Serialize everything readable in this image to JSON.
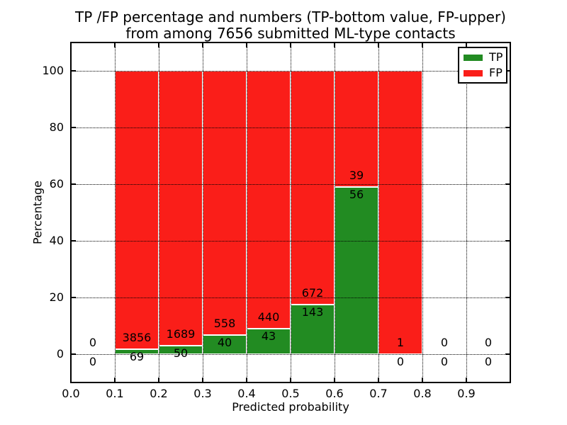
{
  "chart_data": {
    "type": "bar",
    "stacked": true,
    "title_line1": "TP /FP percentage and numbers (TP-bottom value, FP-upper)",
    "title_line2": "from among 7656 submitted ML-type contacts",
    "total_submitted": 7656,
    "xlabel": "Predicted probability",
    "ylabel": "Percentage",
    "xlim": [
      0.0,
      1.0
    ],
    "ylim": [
      -10,
      110
    ],
    "xtick_labels": [
      "0.0",
      "0.1",
      "0.2",
      "0.3",
      "0.4",
      "0.5",
      "0.6",
      "0.7",
      "0.8",
      "0.9"
    ],
    "xtick_values": [
      0.0,
      0.1,
      0.2,
      0.3,
      0.4,
      0.5,
      0.6,
      0.7,
      0.8,
      0.9
    ],
    "ytick_labels": [
      "0",
      "20",
      "40",
      "60",
      "80",
      "100"
    ],
    "ytick_values": [
      0,
      20,
      40,
      60,
      80,
      100
    ],
    "grid": "dotted",
    "categories": [
      "0.0-0.1",
      "0.1-0.2",
      "0.2-0.3",
      "0.3-0.4",
      "0.4-0.5",
      "0.5-0.6",
      "0.6-0.7",
      "0.7-0.8",
      "0.8-0.9",
      "0.9-1.0"
    ],
    "series": [
      {
        "name": "TP",
        "color": "#228b22",
        "counts": [
          0,
          69,
          50,
          40,
          43,
          143,
          56,
          0,
          0,
          0
        ],
        "percent": [
          0,
          1.76,
          2.88,
          6.69,
          8.9,
          17.55,
          58.95,
          0,
          0,
          0
        ]
      },
      {
        "name": "FP",
        "color": "#fa1e19",
        "counts": [
          0,
          3856,
          1689,
          558,
          440,
          672,
          39,
          1,
          0,
          0
        ],
        "percent": [
          0,
          98.24,
          97.12,
          93.31,
          91.1,
          82.45,
          41.05,
          100,
          0,
          0
        ]
      }
    ],
    "bins": [
      {
        "x_start": 0.0,
        "x_end": 0.1,
        "tp": 0,
        "fp": 0
      },
      {
        "x_start": 0.1,
        "x_end": 0.2,
        "tp": 69,
        "fp": 3856
      },
      {
        "x_start": 0.2,
        "x_end": 0.3,
        "tp": 50,
        "fp": 1689
      },
      {
        "x_start": 0.3,
        "x_end": 0.4,
        "tp": 40,
        "fp": 558
      },
      {
        "x_start": 0.4,
        "x_end": 0.5,
        "tp": 43,
        "fp": 440
      },
      {
        "x_start": 0.5,
        "x_end": 0.6,
        "tp": 143,
        "fp": 672
      },
      {
        "x_start": 0.6,
        "x_end": 0.7,
        "tp": 56,
        "fp": 39
      },
      {
        "x_start": 0.7,
        "x_end": 0.8,
        "tp": 0,
        "fp": 1
      },
      {
        "x_start": 0.8,
        "x_end": 0.9,
        "tp": 0,
        "fp": 0
      },
      {
        "x_start": 0.9,
        "x_end": 1.0,
        "tp": 0,
        "fp": 0
      }
    ],
    "legend": {
      "position": "upper right",
      "entries": [
        {
          "label": "TP",
          "color": "#228b22"
        },
        {
          "label": "FP",
          "color": "#fa1e19"
        }
      ]
    }
  },
  "colors": {
    "tp_green": "#228b22",
    "fp_red": "#fa1e19",
    "grid": "#000000",
    "background": "#ffffff",
    "text": "#000000"
  }
}
